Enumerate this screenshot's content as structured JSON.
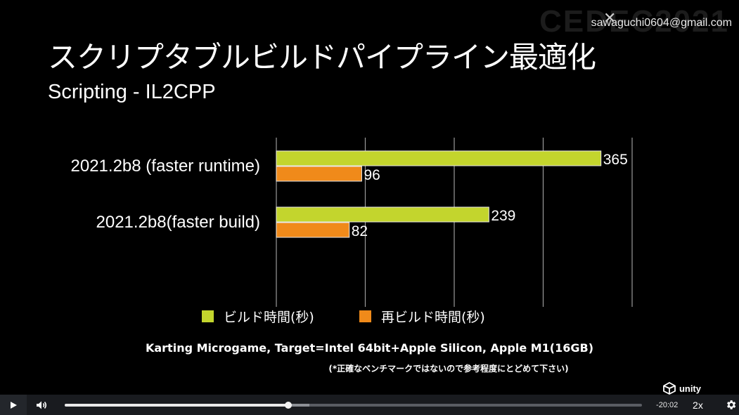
{
  "slide": {
    "watermark_logo": "CEDEC2021",
    "watermark_email": "sawaguchi0604@gmail.com",
    "close_glyph": "✕",
    "title": "スクリプタブルビルドパイプライン最適化",
    "subtitle": "Scripting - IL2CPP",
    "caption_main": "Karting Microgame, Target=Intel 64bit+Apple Silicon, Apple M1(16GB)",
    "caption_note": "(*正確なベンチマークではないので参考程度にとどめて下さい)",
    "brand": "unity"
  },
  "chart_data": {
    "type": "bar",
    "orientation": "horizontal",
    "title": "",
    "categories": [
      "2021.2b8 (faster runtime)",
      "2021.2b8(faster build)"
    ],
    "series": [
      {
        "name": "ビルド時間(秒)",
        "color": "#c3d52d",
        "values": [
          365,
          239
        ]
      },
      {
        "name": "再ビルド時間(秒)",
        "color": "#f08a1a",
        "values": [
          96,
          82
        ]
      }
    ],
    "xlim": [
      0,
      400
    ],
    "grid": true,
    "gridlines_at": [
      0,
      100,
      200,
      300,
      400
    ],
    "legend": "bottom"
  },
  "player": {
    "play_icon": "play-icon",
    "volume_icon": "volume-icon",
    "settings_icon": "gear-icon",
    "time_remaining": "-20:02",
    "speed": "2x",
    "progress_fraction": 0.387
  }
}
